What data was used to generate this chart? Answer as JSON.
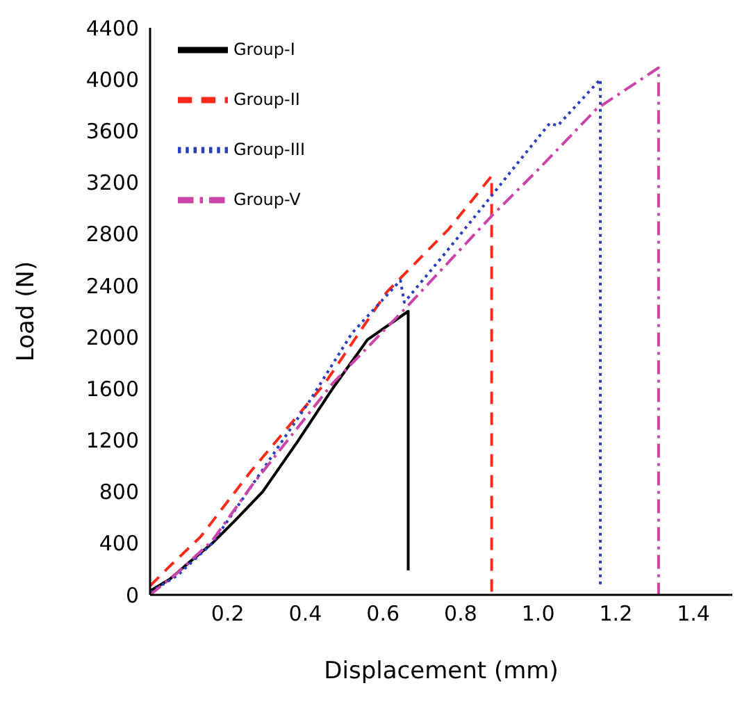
{
  "chart_data": {
    "type": "line",
    "xlabel": "Displacement (mm)",
    "ylabel": "Load (N)",
    "xlim": [
      0,
      1.5
    ],
    "xticks": [
      0.2,
      0.4,
      0.6,
      0.8,
      {
        "value": 1,
        "label": "1.0"
      },
      1.2,
      1.4
    ],
    "ylim": [
      0,
      4400
    ],
    "yticks": [
      0,
      400,
      800,
      1200,
      1600,
      2000,
      2400,
      2800,
      3200,
      3600,
      4000,
      4400
    ],
    "grid": false,
    "legend": "top left",
    "marker": "none",
    "series": [
      {
        "name": "Group-I",
        "color": "#000000",
        "line_style": "solid",
        "x": [
          0,
          0.05,
          0.1,
          0.16,
          0.22,
          0.29,
          0.38,
          0.47,
          0.56,
          0.665,
          0.665
        ],
        "values": [
          30,
          120,
          250,
          400,
          580,
          800,
          1190,
          1600,
          1980,
          2200,
          190
        ]
      },
      {
        "name": "Group-II",
        "color": "#ff2a1a",
        "line_style": "dashed",
        "x": [
          0,
          0.05,
          0.13,
          0.26,
          0.45,
          0.61,
          0.77,
          0.88,
          0.88
        ],
        "values": [
          70,
          220,
          450,
          960,
          1640,
          2350,
          2840,
          3250,
          0
        ]
      },
      {
        "name": "Group-III",
        "color": "#2a3fbf",
        "line_style": "dotted",
        "x": [
          0,
          0.07,
          0.16,
          0.29,
          0.41,
          0.52,
          0.645,
          0.655,
          0.76,
          0.87,
          0.96,
          1.03,
          1.05,
          1.16,
          1.16
        ],
        "values": [
          20,
          150,
          400,
          970,
          1500,
          2030,
          2440,
          2270,
          2650,
          3060,
          3400,
          3660,
          3640,
          4000,
          70
        ]
      },
      {
        "name": "Group-V",
        "color": "#cc44aa",
        "line_style": "dashdot",
        "x": [
          0,
          0.07,
          0.16,
          0.26,
          0.47,
          0.66,
          0.88,
          1.0,
          1.15,
          1.31,
          1.31
        ],
        "values": [
          0,
          170,
          420,
          840,
          1640,
          2230,
          2940,
          3300,
          3770,
          4090,
          0
        ]
      }
    ]
  }
}
